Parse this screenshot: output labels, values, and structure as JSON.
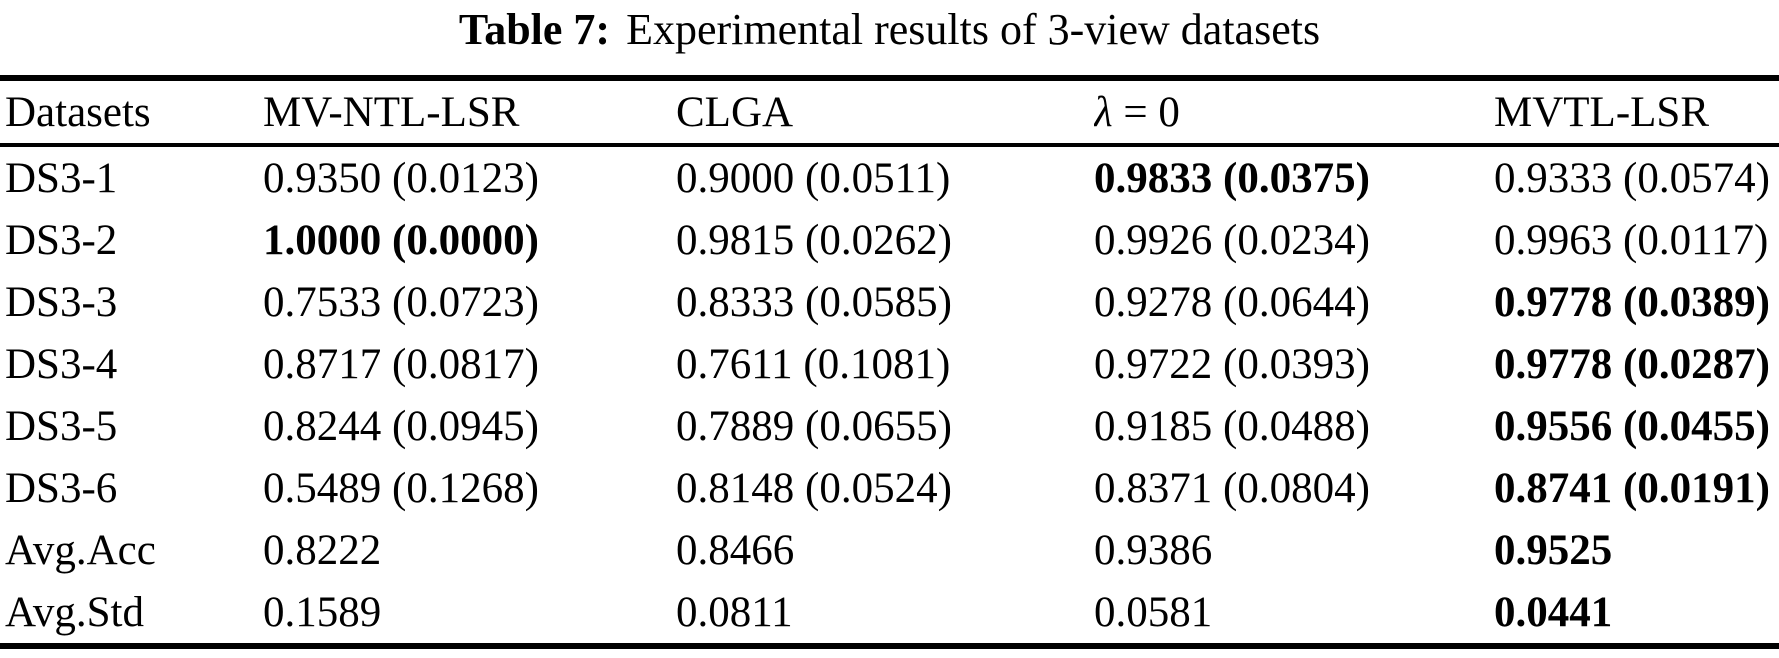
{
  "title": {
    "prefix": "Table 7:",
    "text": "Experimental results of 3-view datasets"
  },
  "table": {
    "header": {
      "datasets": "Datasets",
      "mv_ntl_lsr": "MV-NTL-LSR",
      "clga": "CLGA",
      "lambda_symbol": "λ",
      "lambda_rest": " = 0",
      "mvtl_lsr": "MVTL-LSR"
    },
    "rows": [
      {
        "dataset": "DS3-1",
        "cells": [
          {
            "text": "0.9350 (0.0123)",
            "bold": false
          },
          {
            "text": "0.9000 (0.0511)",
            "bold": false
          },
          {
            "text": "0.9833 (0.0375)",
            "bold": true
          },
          {
            "text": "0.9333 (0.0574)",
            "bold": false
          }
        ]
      },
      {
        "dataset": "DS3-2",
        "cells": [
          {
            "text": "1.0000 (0.0000)",
            "bold": true
          },
          {
            "text": "0.9815 (0.0262)",
            "bold": false
          },
          {
            "text": "0.9926 (0.0234)",
            "bold": false
          },
          {
            "text": "0.9963 (0.0117)",
            "bold": false
          }
        ]
      },
      {
        "dataset": "DS3-3",
        "cells": [
          {
            "text": "0.7533 (0.0723)",
            "bold": false
          },
          {
            "text": "0.8333 (0.0585)",
            "bold": false
          },
          {
            "text": "0.9278 (0.0644)",
            "bold": false
          },
          {
            "text": "0.9778 (0.0389)",
            "bold": true
          }
        ]
      },
      {
        "dataset": "DS3-4",
        "cells": [
          {
            "text": "0.8717 (0.0817)",
            "bold": false
          },
          {
            "text": "0.7611 (0.1081)",
            "bold": false
          },
          {
            "text": "0.9722 (0.0393)",
            "bold": false
          },
          {
            "text": "0.9778 (0.0287)",
            "bold": true
          }
        ]
      },
      {
        "dataset": "DS3-5",
        "cells": [
          {
            "text": "0.8244 (0.0945)",
            "bold": false
          },
          {
            "text": "0.7889 (0.0655)",
            "bold": false
          },
          {
            "text": "0.9185 (0.0488)",
            "bold": false
          },
          {
            "text": "0.9556 (0.0455)",
            "bold": true
          }
        ]
      },
      {
        "dataset": "DS3-6",
        "cells": [
          {
            "text": "0.5489 (0.1268)",
            "bold": false
          },
          {
            "text": "0.8148 (0.0524)",
            "bold": false
          },
          {
            "text": "0.8371 (0.0804)",
            "bold": false
          },
          {
            "text": "0.8741 (0.0191)",
            "bold": true
          }
        ]
      },
      {
        "dataset": "Avg.Acc",
        "cells": [
          {
            "text": "0.8222",
            "bold": false
          },
          {
            "text": "0.8466",
            "bold": false
          },
          {
            "text": "0.9386",
            "bold": false
          },
          {
            "text": "0.9525",
            "bold": true
          }
        ]
      },
      {
        "dataset": "Avg.Std",
        "cells": [
          {
            "text": "0.1589",
            "bold": false
          },
          {
            "text": "0.0811",
            "bold": false
          },
          {
            "text": "0.0581",
            "bold": false
          },
          {
            "text": "0.0441",
            "bold": true
          }
        ]
      }
    ]
  },
  "colors": {
    "background": "#ffffff",
    "text": "#000000",
    "rule": "#000000"
  }
}
